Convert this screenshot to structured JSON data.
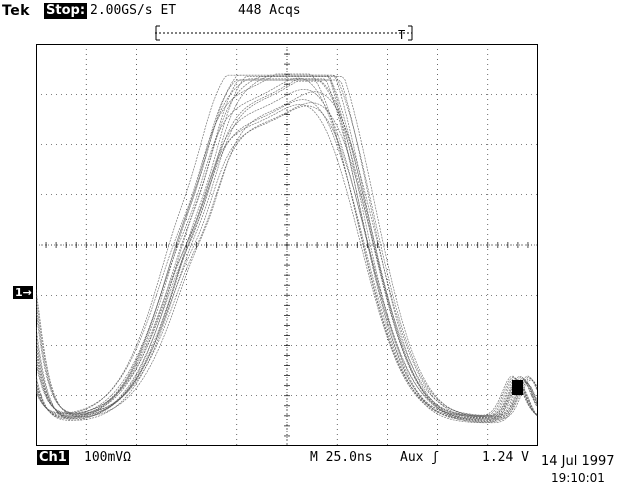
{
  "header": {
    "brand": "Tek",
    "run_state": "Stop:",
    "sample_rate": "2.00GS/s ET",
    "acquisitions": "448 Acqs"
  },
  "channel": {
    "label": "Ch1",
    "ground_marker": "1→",
    "scale": "100mVΩ"
  },
  "timebase": {
    "horizontal": "M 25.0ns",
    "trigger_source": "Aux ʃ",
    "trigger_level": "1.24 V"
  },
  "timestamp": {
    "date": "14 Jul 1997",
    "time": "19:10:01"
  },
  "display": {
    "trace_color": "#555555",
    "grid_color": "#000000",
    "background": "#ffffff"
  }
}
